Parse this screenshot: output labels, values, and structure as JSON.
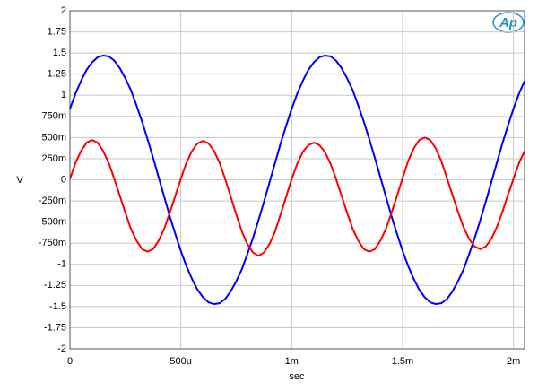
{
  "chart_data": {
    "type": "line",
    "logo": "Ap",
    "xlabel": "sec",
    "ylabel": "V",
    "x": [
      0,
      2.5e-05,
      5e-05,
      7.5e-05,
      0.0001,
      0.000125,
      0.00015,
      0.000175,
      0.0002,
      0.000225,
      0.00025,
      0.000275,
      0.0003,
      0.000325,
      0.00035,
      0.000375,
      0.0004,
      0.000425,
      0.00045,
      0.000475,
      0.0005,
      0.000525,
      0.00055,
      0.000575,
      0.0006,
      0.000625,
      0.00065,
      0.000675,
      0.0007,
      0.000725,
      0.00075,
      0.000775,
      0.0008,
      0.000825,
      0.00085,
      0.000875,
      0.0009,
      0.000925,
      0.00095,
      0.000975,
      0.001,
      0.001025,
      0.00105,
      0.001075,
      0.0011,
      0.001125,
      0.00115,
      0.001175,
      0.0012,
      0.001225,
      0.00125,
      0.001275,
      0.0013,
      0.001325,
      0.00135,
      0.001375,
      0.0014,
      0.001425,
      0.00145,
      0.001475,
      0.0015,
      0.001525,
      0.00155,
      0.001575,
      0.0016,
      0.001625,
      0.00165,
      0.001675,
      0.0017,
      0.001725,
      0.00175,
      0.001775,
      0.0018,
      0.001825,
      0.00185,
      0.001875,
      0.0019,
      0.001925,
      0.00195,
      0.001975,
      0.002,
      0.002025,
      0.00205
    ],
    "series": [
      {
        "color": "#0000ff",
        "values": [
          0.84,
          1.02,
          1.17,
          1.3,
          1.39,
          1.45,
          1.47,
          1.46,
          1.41,
          1.32,
          1.2,
          1.06,
          0.88,
          0.69,
          0.48,
          0.26,
          0.03,
          -0.2,
          -0.43,
          -0.64,
          -0.84,
          -1.02,
          -1.17,
          -1.3,
          -1.39,
          -1.45,
          -1.47,
          -1.46,
          -1.41,
          -1.32,
          -1.2,
          -1.06,
          -0.88,
          -0.69,
          -0.48,
          -0.26,
          -0.03,
          0.2,
          0.43,
          0.64,
          0.84,
          1.02,
          1.17,
          1.3,
          1.39,
          1.45,
          1.47,
          1.46,
          1.41,
          1.32,
          1.2,
          1.06,
          0.88,
          0.69,
          0.48,
          0.26,
          0.03,
          -0.2,
          -0.43,
          -0.64,
          -0.84,
          -1.02,
          -1.17,
          -1.3,
          -1.39,
          -1.45,
          -1.47,
          -1.46,
          -1.41,
          -1.32,
          -1.2,
          -1.06,
          -0.88,
          -0.69,
          -0.48,
          -0.26,
          -0.03,
          0.2,
          0.43,
          0.64,
          0.84,
          1.02,
          1.17
        ]
      },
      {
        "color": "#ff0000",
        "values": [
          0.01,
          0.2,
          0.34,
          0.44,
          0.47,
          0.44,
          0.34,
          0.2,
          0.01,
          -0.19,
          -0.39,
          -0.58,
          -0.72,
          -0.82,
          -0.85,
          -0.82,
          -0.72,
          -0.58,
          -0.39,
          -0.19,
          0.01,
          0.2,
          0.34,
          0.43,
          0.46,
          0.43,
          0.34,
          0.2,
          0.01,
          -0.2,
          -0.41,
          -0.61,
          -0.76,
          -0.86,
          -0.9,
          -0.86,
          -0.76,
          -0.61,
          -0.41,
          -0.2,
          0.01,
          0.19,
          0.33,
          0.41,
          0.44,
          0.41,
          0.33,
          0.19,
          0.01,
          -0.19,
          -0.39,
          -0.58,
          -0.72,
          -0.82,
          -0.85,
          -0.82,
          -0.72,
          -0.58,
          -0.39,
          -0.19,
          0.02,
          0.22,
          0.37,
          0.47,
          0.5,
          0.47,
          0.37,
          0.22,
          0.02,
          -0.18,
          -0.38,
          -0.56,
          -0.7,
          -0.79,
          -0.82,
          -0.79,
          -0.7,
          -0.56,
          -0.38,
          -0.18,
          0.01,
          0.2,
          0.34
        ]
      }
    ],
    "xlim": [
      0,
      0.00205
    ],
    "xticks": [
      0,
      {
        "value": 0.0005,
        "label": "500u"
      },
      {
        "value": 0.001,
        "label": "1m"
      },
      {
        "value": 0.0015,
        "label": "1.5m"
      },
      {
        "value": 0.002,
        "label": "2m"
      }
    ],
    "ylim": [
      -2,
      2
    ],
    "yticks": [
      2,
      1.75,
      1.5,
      1.25,
      1,
      {
        "value": 0.75,
        "label": "750m"
      },
      {
        "value": 0.5,
        "label": "500m"
      },
      {
        "value": 0.25,
        "label": "250m"
      },
      0,
      {
        "value": -0.25,
        "label": "-250m"
      },
      {
        "value": -0.5,
        "label": "-500m"
      },
      {
        "value": -0.75,
        "label": "-750m"
      },
      -1,
      -1.25,
      -1.5,
      -1.75,
      -2
    ],
    "grid": true
  }
}
